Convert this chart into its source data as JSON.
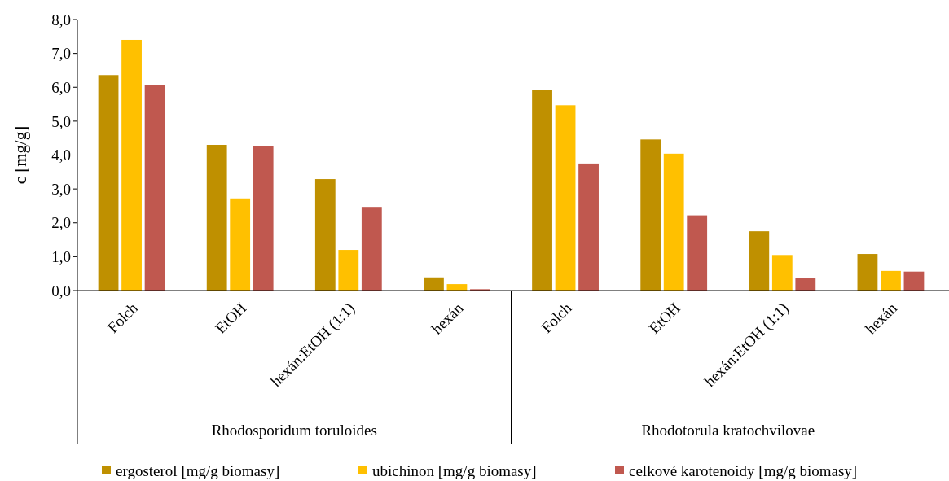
{
  "chart_data": {
    "type": "bar",
    "ylabel": "c [mg/g]",
    "categories": [
      "Folch",
      "EtOH",
      "hexán:EtOH (1:1)",
      "hexán",
      "Folch",
      "EtOH",
      "hexán:EtOH (1:1)",
      "hexán"
    ],
    "annotations": [
      "Rhodosporidum toruloides",
      "Rhodotorula kratochvilovae"
    ],
    "series": [
      {
        "name": "ergosterol [mg/g biomasy]",
        "color": "#bf9000",
        "values": [
          6.36,
          4.3,
          3.29,
          0.39,
          5.93,
          4.46,
          1.75,
          1.08
        ]
      },
      {
        "name": "ubichinon [mg/g biomasy]",
        "color": "#ffc000",
        "values": [
          7.4,
          2.72,
          1.2,
          0.19,
          5.47,
          4.04,
          1.05,
          0.58
        ]
      },
      {
        "name": "celkové karotenoidy [mg/g biomasy]",
        "color": "#c0584f",
        "values": [
          6.06,
          4.27,
          2.47,
          0.04,
          3.75,
          2.22,
          0.36,
          0.56
        ]
      }
    ],
    "ylim": [
      0,
      8
    ],
    "yticks": [
      {
        "value": 0,
        "label": "0,0"
      },
      {
        "value": 1,
        "label": "1,0"
      },
      {
        "value": 2,
        "label": "2,0"
      },
      {
        "value": 3,
        "label": "3,0"
      },
      {
        "value": 4,
        "label": "4,0"
      },
      {
        "value": 5,
        "label": "5,0"
      },
      {
        "value": 6,
        "label": "6,0"
      },
      {
        "value": 7,
        "label": "7,0"
      },
      {
        "value": 8,
        "label": "8,0"
      }
    ],
    "grid": false,
    "legend": "bottom"
  }
}
